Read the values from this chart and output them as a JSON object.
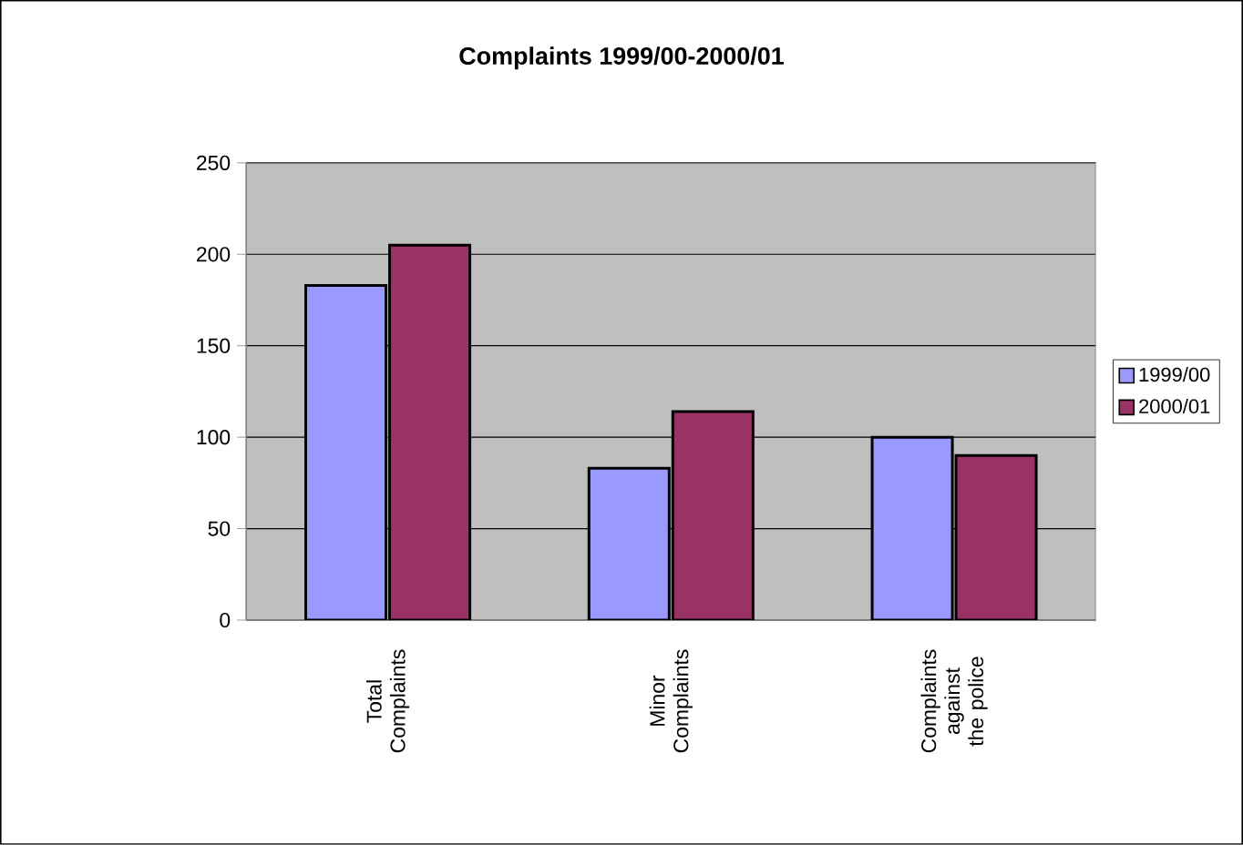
{
  "chart_data": {
    "type": "bar",
    "title": "Complaints 1999/00-2000/01",
    "categories": [
      "Total Complaints",
      "Minor Complaints",
      "Complaints against the police"
    ],
    "series": [
      {
        "name": "1999/00",
        "color": "#9999ff",
        "values": [
          183,
          83,
          100
        ]
      },
      {
        "name": "2000/01",
        "color": "#993366",
        "values": [
          205,
          114,
          90
        ]
      }
    ],
    "ylim": [
      0,
      250
    ],
    "yticks": [
      0,
      50,
      100,
      150,
      200,
      250
    ],
    "grid": "y",
    "legend": "right"
  }
}
